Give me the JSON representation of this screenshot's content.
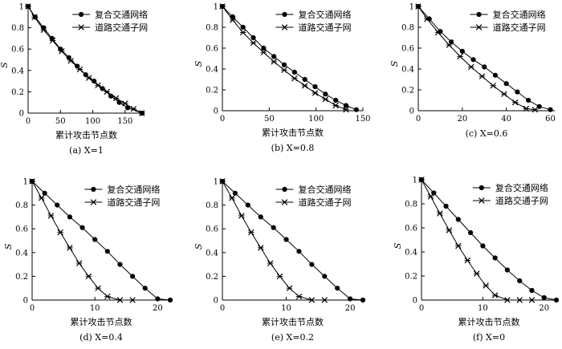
{
  "colors": {
    "series": "#000000",
    "background": "#ffffff"
  },
  "chart_data": [
    {
      "type": "line",
      "caption": "(a) X=1",
      "xlabel": "累计攻击节点数",
      "ylabel": "S",
      "xlim": [
        0,
        180
      ],
      "ylim": [
        0,
        1
      ],
      "xticks": [
        0,
        50,
        100,
        150
      ],
      "yticks": [
        0,
        0.2,
        0.4,
        0.6,
        0.8,
        1
      ],
      "legend_position": "top-right",
      "series": [
        {
          "name": "复合交通网络",
          "marker": "circle",
          "x": [
            0,
            11,
            24,
            37,
            50,
            63,
            76,
            89,
            102,
            115,
            128,
            141,
            154,
            176
          ],
          "y": [
            1,
            0.9,
            0.8,
            0.7,
            0.6,
            0.52,
            0.44,
            0.36,
            0.3,
            0.23,
            0.16,
            0.1,
            0.05,
            0
          ]
        },
        {
          "name": "道路交通子网",
          "marker": "x",
          "x": [
            0,
            10,
            24,
            38,
            52,
            66,
            80,
            94,
            108,
            122,
            136,
            150,
            163,
            176
          ],
          "y": [
            1,
            0.9,
            0.78,
            0.68,
            0.58,
            0.49,
            0.41,
            0.33,
            0.26,
            0.2,
            0.14,
            0.09,
            0.04,
            0
          ]
        }
      ]
    },
    {
      "type": "line",
      "caption": "(b) X=0.8",
      "xlabel": "累计攻击节点数",
      "ylabel": "S",
      "xlim": [
        0,
        150
      ],
      "ylim": [
        0,
        1
      ],
      "xticks": [
        0,
        50,
        100,
        150
      ],
      "yticks": [
        0,
        0.2,
        0.4,
        0.6,
        0.8,
        1
      ],
      "legend_position": "top-right",
      "series": [
        {
          "name": "复合交通网络",
          "marker": "circle",
          "x": [
            0,
            11,
            22,
            33,
            44,
            55,
            66,
            77,
            88,
            99,
            110,
            121,
            132,
            143
          ],
          "y": [
            1,
            0.9,
            0.8,
            0.7,
            0.6,
            0.52,
            0.44,
            0.37,
            0.3,
            0.23,
            0.16,
            0.1,
            0.05,
            0.01
          ]
        },
        {
          "name": "道路交通子网",
          "marker": "x",
          "x": [
            0,
            11,
            22,
            33,
            44,
            55,
            66,
            77,
            88,
            99,
            110,
            121,
            132
          ],
          "y": [
            1,
            0.87,
            0.75,
            0.65,
            0.56,
            0.47,
            0.39,
            0.31,
            0.24,
            0.17,
            0.11,
            0.05,
            0.01
          ]
        }
      ]
    },
    {
      "type": "line",
      "caption": "(c) X=0.6",
      "xlabel": "",
      "ylabel": "S",
      "xlim": [
        0,
        62
      ],
      "ylim": [
        0,
        1
      ],
      "xticks": [
        0,
        20,
        40,
        60
      ],
      "yticks": [
        0,
        0.2,
        0.4,
        0.6,
        0.8,
        1
      ],
      "legend_position": "top-right",
      "series": [
        {
          "name": "复合交通网络",
          "marker": "circle",
          "x": [
            0,
            5,
            10,
            15,
            20,
            25,
            30,
            35,
            40,
            45,
            50,
            55,
            60
          ],
          "y": [
            1,
            0.88,
            0.76,
            0.66,
            0.57,
            0.49,
            0.42,
            0.34,
            0.26,
            0.18,
            0.1,
            0.04,
            0.01
          ]
        },
        {
          "name": "道路交通子网",
          "marker": "x",
          "x": [
            0,
            4,
            9,
            14,
            19,
            24,
            29,
            34,
            39,
            44,
            49,
            53
          ],
          "y": [
            1,
            0.88,
            0.75,
            0.63,
            0.52,
            0.42,
            0.33,
            0.24,
            0.16,
            0.08,
            0.02,
            0.01
          ]
        }
      ]
    },
    {
      "type": "line",
      "caption": "(d) X=0.4",
      "xlabel": "累计攻击节点数",
      "ylabel": "S",
      "xlim": [
        0,
        22
      ],
      "ylim": [
        0,
        1
      ],
      "xticks": [
        0,
        10,
        20
      ],
      "yticks": [
        0,
        0.2,
        0.4,
        0.6,
        0.8,
        1
      ],
      "legend_position": "top-right",
      "series": [
        {
          "name": "复合交通网络",
          "marker": "circle",
          "x": [
            0,
            2,
            4,
            6,
            8,
            10,
            12,
            14,
            16,
            18,
            20,
            22
          ],
          "y": [
            1,
            0.9,
            0.8,
            0.7,
            0.61,
            0.51,
            0.41,
            0.3,
            0.2,
            0.1,
            0.01,
            0
          ]
        },
        {
          "name": "道路交通子网",
          "marker": "x",
          "x": [
            0,
            1.5,
            3,
            4.5,
            6,
            7.5,
            9,
            10.5,
            12,
            14,
            16
          ],
          "y": [
            1,
            0.86,
            0.71,
            0.57,
            0.44,
            0.31,
            0.2,
            0.1,
            0.03,
            0,
            0
          ]
        }
      ]
    },
    {
      "type": "line",
      "caption": "(e) X=0.2",
      "xlabel": "累计攻击节点数",
      "ylabel": "S",
      "xlim": [
        0,
        22
      ],
      "ylim": [
        0,
        1
      ],
      "xticks": [
        0,
        10,
        20
      ],
      "yticks": [
        0,
        0.2,
        0.4,
        0.6,
        0.8,
        1
      ],
      "legend_position": "top-right",
      "series": [
        {
          "name": "复合交通网络",
          "marker": "circle",
          "x": [
            0,
            2,
            4,
            6,
            8,
            10,
            12,
            14,
            16,
            18,
            20,
            22
          ],
          "y": [
            1,
            0.9,
            0.8,
            0.7,
            0.61,
            0.51,
            0.41,
            0.3,
            0.2,
            0.1,
            0.01,
            0
          ]
        },
        {
          "name": "道路交通子网",
          "marker": "x",
          "x": [
            0,
            1.5,
            3,
            4.5,
            6,
            7.5,
            9,
            10.5,
            12,
            14,
            16
          ],
          "y": [
            1,
            0.86,
            0.71,
            0.57,
            0.44,
            0.31,
            0.2,
            0.1,
            0.03,
            0,
            0
          ]
        }
      ]
    },
    {
      "type": "line",
      "caption": "(f) X=0",
      "xlabel": "累计攻击节点数",
      "ylabel": "S",
      "xlim": [
        0,
        22
      ],
      "ylim": [
        0,
        1
      ],
      "xticks": [
        0,
        10,
        20
      ],
      "yticks": [
        0,
        0.2,
        0.4,
        0.6,
        0.8,
        1
      ],
      "legend_position": "top-right",
      "series": [
        {
          "name": "复合交通网络",
          "marker": "circle",
          "x": [
            0,
            2,
            4,
            6,
            8,
            10,
            12,
            14,
            16,
            18,
            20,
            22
          ],
          "y": [
            1,
            0.89,
            0.78,
            0.67,
            0.56,
            0.45,
            0.35,
            0.25,
            0.16,
            0.08,
            0.02,
            0
          ]
        },
        {
          "name": "道路交通子网",
          "marker": "x",
          "x": [
            0,
            1.5,
            3,
            4.5,
            6,
            7.5,
            9,
            10.5,
            12,
            14,
            16,
            18
          ],
          "y": [
            1,
            0.86,
            0.72,
            0.58,
            0.45,
            0.33,
            0.22,
            0.12,
            0.04,
            0,
            0,
            0
          ]
        }
      ]
    }
  ]
}
